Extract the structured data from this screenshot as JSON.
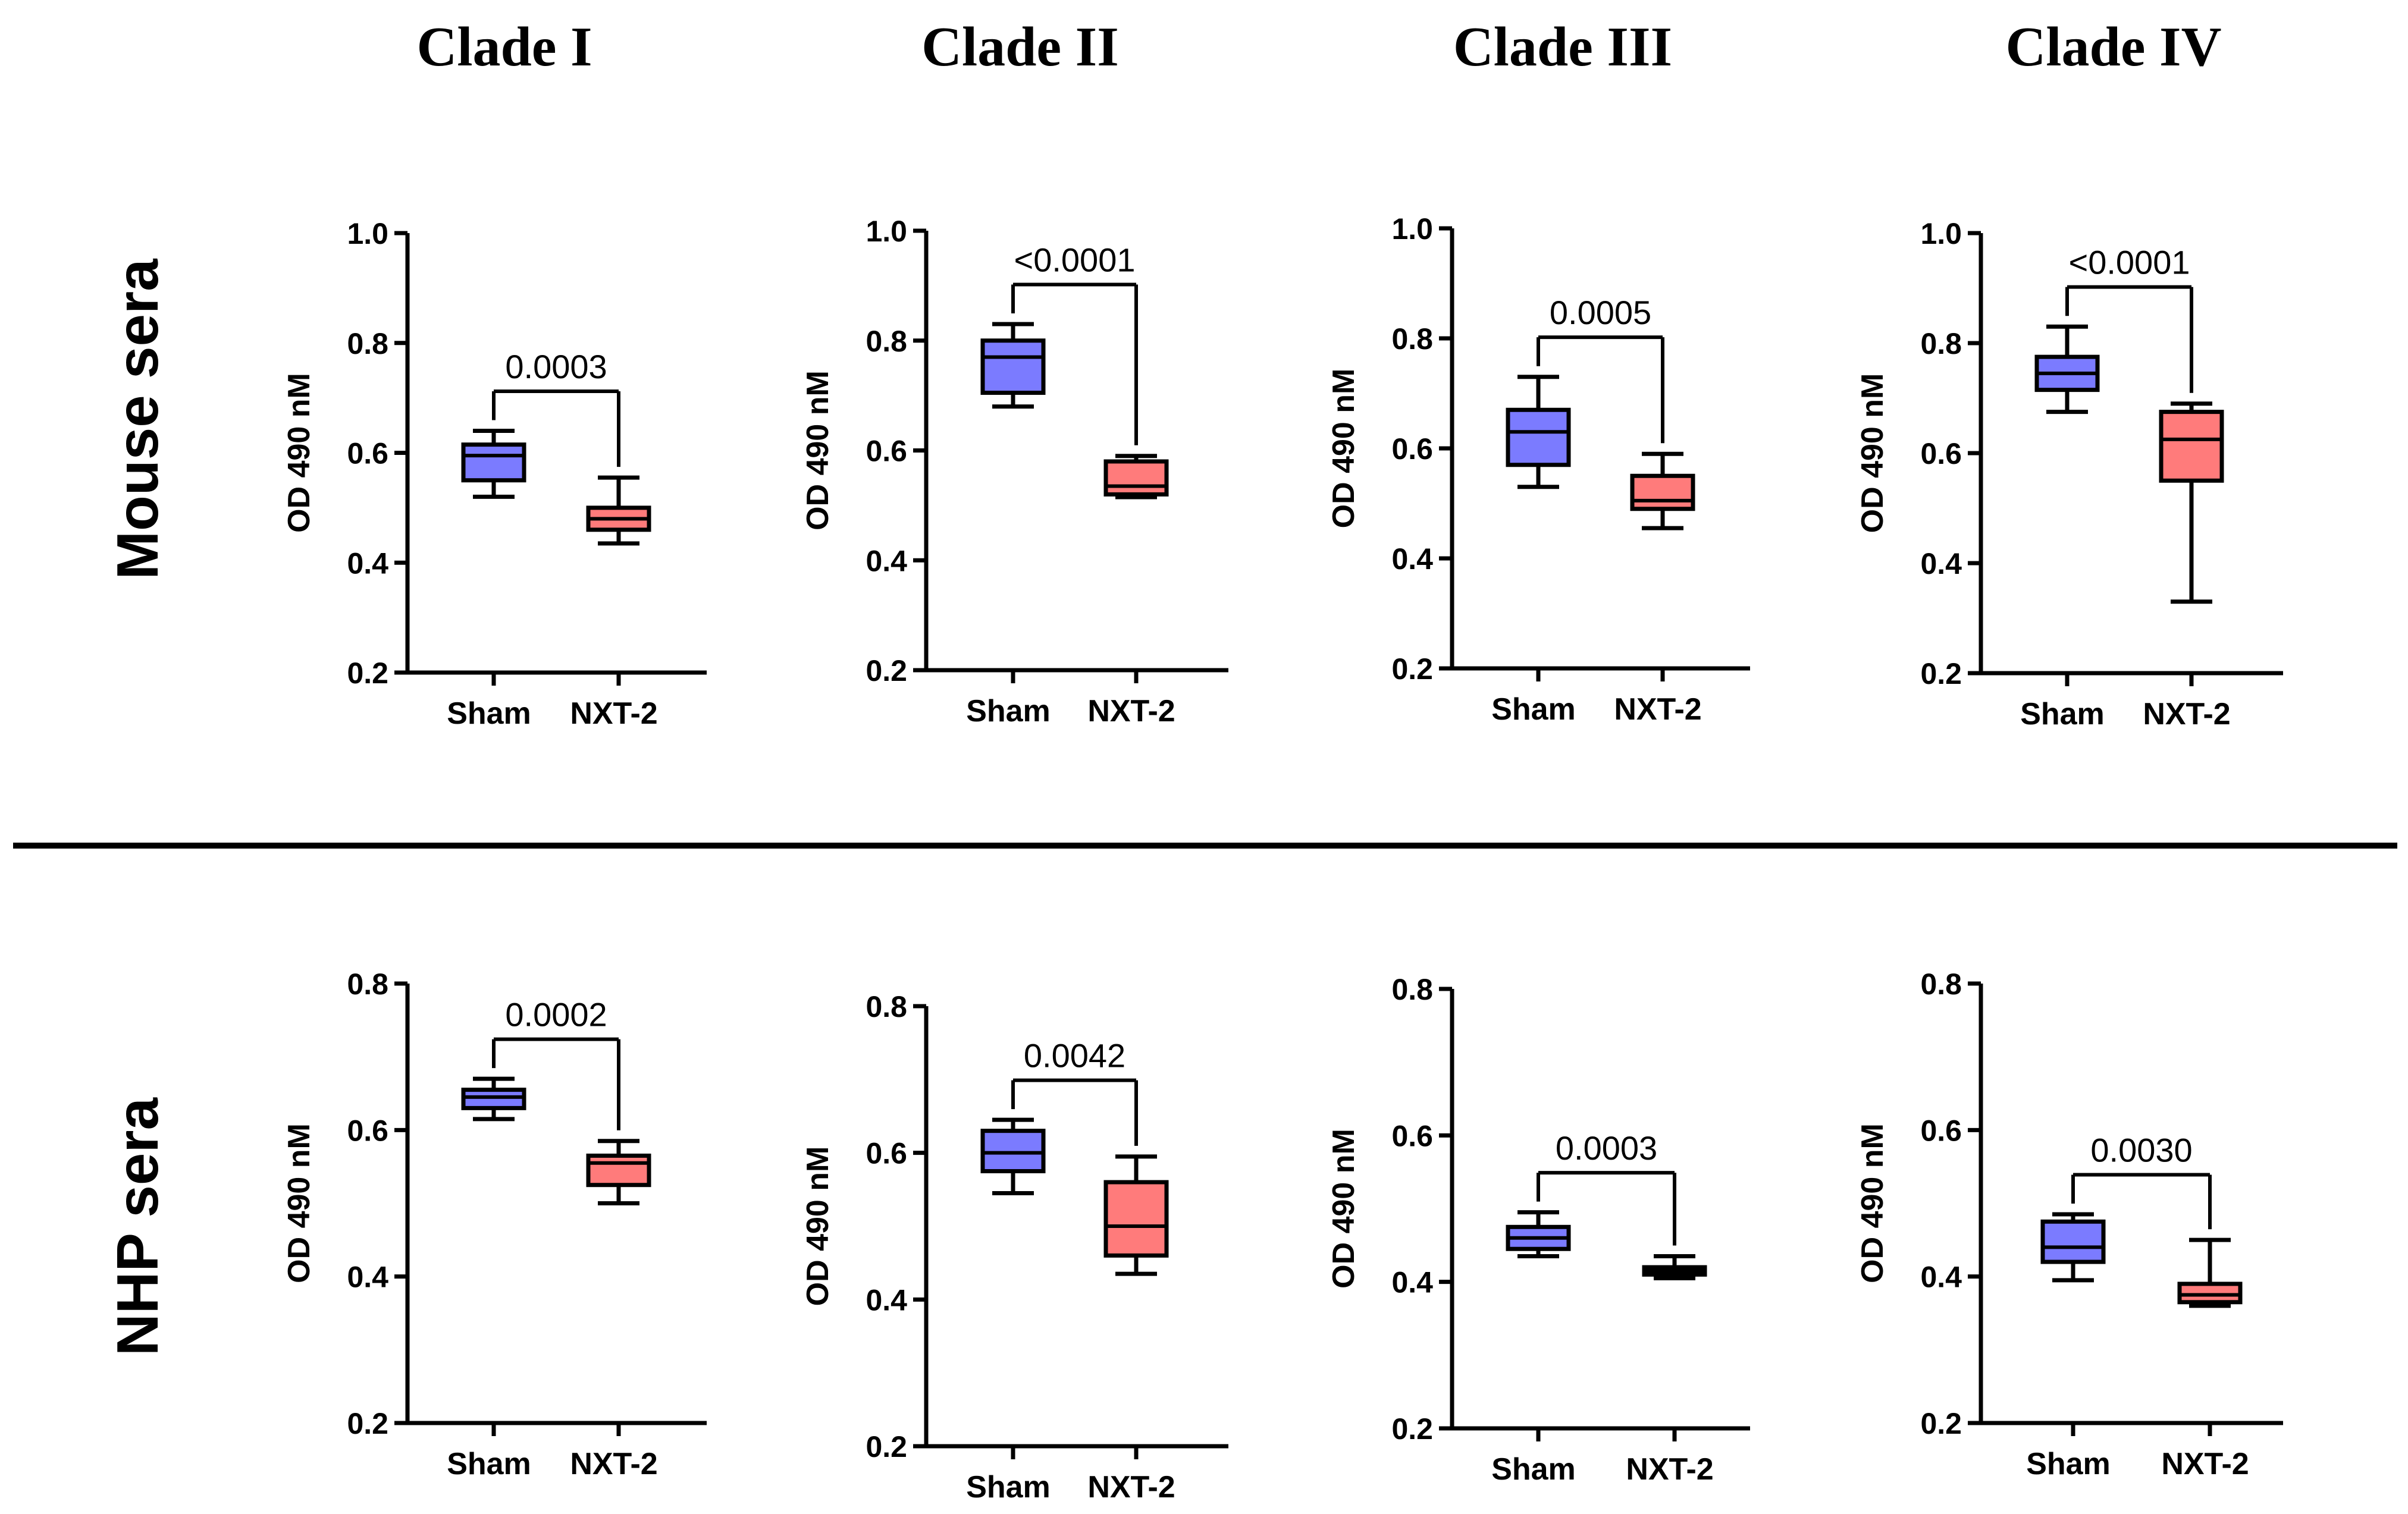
{
  "columns": [
    "Clade I",
    "Clade II",
    "Clade III",
    "Clade IV"
  ],
  "rows": [
    "Mouse sera",
    "NHP sera"
  ],
  "colors": {
    "sham": "#7b7bff",
    "nxt2": "#ff7b7b",
    "stroke": "#000000"
  },
  "chart_data": [
    {
      "type": "box",
      "row": "Mouse sera",
      "clade": "Clade I",
      "ylabel": "OD 490 nM",
      "ylim": [
        0.2,
        1.0
      ],
      "yticks": [
        0.2,
        0.4,
        0.6,
        0.8,
        1.0
      ],
      "pvalue": "0.0003",
      "groups": [
        {
          "name": "Sham",
          "min": 0.52,
          "q1": 0.55,
          "median": 0.595,
          "q3": 0.615,
          "max": 0.64
        },
        {
          "name": "NXT-2",
          "min": 0.435,
          "q1": 0.46,
          "median": 0.48,
          "q3": 0.5,
          "max": 0.555
        }
      ]
    },
    {
      "type": "box",
      "row": "Mouse sera",
      "clade": "Clade II",
      "ylabel": "OD 490 nM",
      "ylim": [
        0.2,
        1.0
      ],
      "yticks": [
        0.2,
        0.4,
        0.6,
        0.8,
        1.0
      ],
      "pvalue": "<0.0001",
      "groups": [
        {
          "name": "Sham",
          "min": 0.68,
          "q1": 0.705,
          "median": 0.77,
          "q3": 0.8,
          "max": 0.83
        },
        {
          "name": "NXT-2",
          "min": 0.515,
          "q1": 0.52,
          "median": 0.535,
          "q3": 0.58,
          "max": 0.59
        }
      ]
    },
    {
      "type": "box",
      "row": "Mouse sera",
      "clade": "Clade III",
      "ylabel": "OD 490 nM",
      "ylim": [
        0.2,
        1.0
      ],
      "yticks": [
        0.2,
        0.4,
        0.6,
        0.8,
        1.0
      ],
      "pvalue": "0.0005",
      "groups": [
        {
          "name": "Sham",
          "min": 0.53,
          "q1": 0.57,
          "median": 0.63,
          "q3": 0.67,
          "max": 0.73
        },
        {
          "name": "NXT-2",
          "min": 0.455,
          "q1": 0.49,
          "median": 0.505,
          "q3": 0.55,
          "max": 0.59
        }
      ]
    },
    {
      "type": "box",
      "row": "Mouse sera",
      "clade": "Clade IV",
      "ylabel": "OD 490 nM",
      "ylim": [
        0.2,
        1.0
      ],
      "yticks": [
        0.2,
        0.4,
        0.6,
        0.8,
        1.0
      ],
      "pvalue": "<0.0001",
      "groups": [
        {
          "name": "Sham",
          "min": 0.675,
          "q1": 0.715,
          "median": 0.745,
          "q3": 0.775,
          "max": 0.83
        },
        {
          "name": "NXT-2",
          "min": 0.33,
          "q1": 0.55,
          "median": 0.625,
          "q3": 0.675,
          "max": 0.69
        }
      ]
    },
    {
      "type": "box",
      "row": "NHP sera",
      "clade": "Clade I",
      "ylabel": "OD 490 nM",
      "ylim": [
        0.2,
        0.8
      ],
      "yticks": [
        0.2,
        0.4,
        0.6,
        0.8
      ],
      "pvalue": "0.0002",
      "groups": [
        {
          "name": "Sham",
          "min": 0.615,
          "q1": 0.63,
          "median": 0.645,
          "q3": 0.655,
          "max": 0.67
        },
        {
          "name": "NXT-2",
          "min": 0.5,
          "q1": 0.525,
          "median": 0.555,
          "q3": 0.565,
          "max": 0.585
        }
      ]
    },
    {
      "type": "box",
      "row": "NHP sera",
      "clade": "Clade II",
      "ylabel": "OD 490 nM",
      "ylim": [
        0.2,
        0.8
      ],
      "yticks": [
        0.2,
        0.4,
        0.6,
        0.8
      ],
      "pvalue": "0.0042",
      "groups": [
        {
          "name": "Sham",
          "min": 0.545,
          "q1": 0.575,
          "median": 0.6,
          "q3": 0.63,
          "max": 0.645
        },
        {
          "name": "NXT-2",
          "min": 0.435,
          "q1": 0.46,
          "median": 0.5,
          "q3": 0.56,
          "max": 0.595
        }
      ]
    },
    {
      "type": "box",
      "row": "NHP sera",
      "clade": "Clade III",
      "ylabel": "OD 490 nM",
      "ylim": [
        0.2,
        0.8
      ],
      "yticks": [
        0.2,
        0.4,
        0.6,
        0.8
      ],
      "pvalue": "0.0003",
      "groups": [
        {
          "name": "Sham",
          "min": 0.435,
          "q1": 0.445,
          "median": 0.46,
          "q3": 0.475,
          "max": 0.495
        },
        {
          "name": "NXT-2",
          "min": 0.405,
          "q1": 0.41,
          "median": 0.415,
          "q3": 0.42,
          "max": 0.435
        }
      ]
    },
    {
      "type": "box",
      "row": "NHP sera",
      "clade": "Clade IV",
      "ylabel": "OD 490 nM",
      "ylim": [
        0.2,
        0.8
      ],
      "yticks": [
        0.2,
        0.4,
        0.6,
        0.8
      ],
      "pvalue": "0.0030",
      "groups": [
        {
          "name": "Sham",
          "min": 0.395,
          "q1": 0.42,
          "median": 0.44,
          "q3": 0.475,
          "max": 0.485
        },
        {
          "name": "NXT-2",
          "min": 0.36,
          "q1": 0.365,
          "median": 0.375,
          "q3": 0.39,
          "max": 0.45
        }
      ]
    }
  ]
}
